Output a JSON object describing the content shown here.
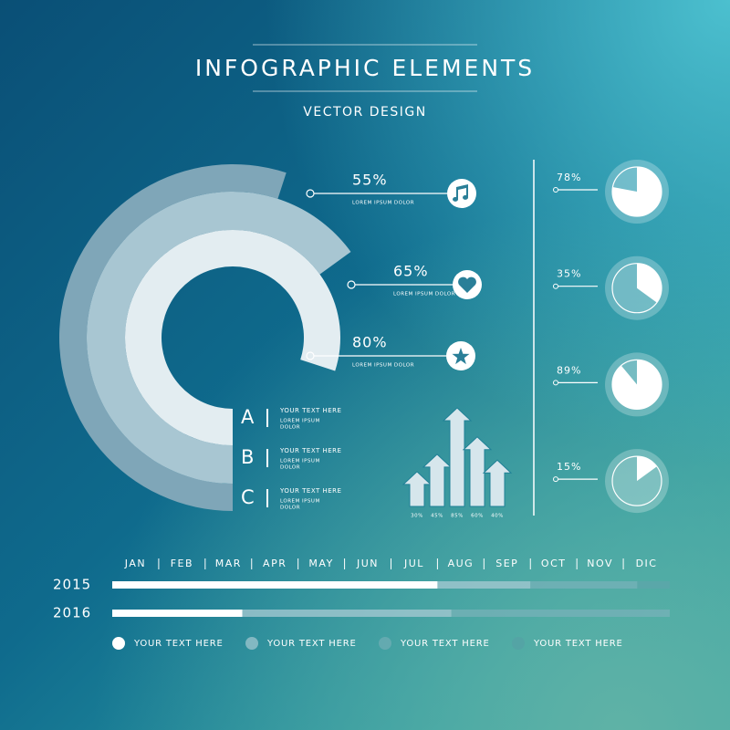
{
  "header": {
    "title": "INFOGRAPHIC ELEMENTS",
    "subtitle": "VECTOR DESIGN"
  },
  "rings": [
    {
      "value": 55,
      "label": "55%",
      "caption": "LOREM IPSUM DOLOR",
      "color": "#7fa6b8"
    },
    {
      "value": 65,
      "label": "65%",
      "caption": "LOREM IPSUM DOLOR",
      "color": "#a8c6d2"
    },
    {
      "value": 80,
      "label": "80%",
      "caption": "LOREM IPSUM DOLOR",
      "color": "#e3edf1"
    }
  ],
  "list": [
    {
      "letter": "A",
      "title": "YOUR TEXT HERE",
      "lines": [
        "LOREM IPSUM",
        "DOLOR"
      ]
    },
    {
      "letter": "B",
      "title": "YOUR TEXT HERE",
      "lines": [
        "LOREM IPSUM",
        "DOLOR"
      ]
    },
    {
      "letter": "C",
      "title": "YOUR TEXT HERE",
      "lines": [
        "LOREM IPSUM",
        "DOLOR"
      ]
    }
  ],
  "arrows": {
    "values": [
      30,
      45,
      85,
      60,
      40
    ],
    "labels": [
      "30%",
      "45%",
      "85%",
      "60%",
      "40%"
    ],
    "color": "#d6e6ec"
  },
  "pies": [
    {
      "value": 78,
      "label": "78%"
    },
    {
      "value": 35,
      "label": "35%"
    },
    {
      "value": 89,
      "label": "89%"
    },
    {
      "value": 15,
      "label": "15%"
    }
  ],
  "timeline": {
    "months": [
      "JAN",
      "FEB",
      "MAR",
      "APR",
      "MAY",
      "JUN",
      "JUL",
      "AUG",
      "SEP",
      "OCT",
      "NOV",
      "DIC"
    ],
    "rows": [
      {
        "year": "2015",
        "segments": [
          7,
          2,
          2.3,
          0.7
        ]
      },
      {
        "year": "2016",
        "segments": [
          2.8,
          4.5,
          4.7
        ]
      }
    ],
    "legend": [
      {
        "label": "YOUR TEXT HERE",
        "color": "#ffffff"
      },
      {
        "label": "YOUR TEXT HERE",
        "color": "#9fc6cf"
      },
      {
        "label": "YOUR TEXT HERE",
        "color": "#6fadb4"
      },
      {
        "label": "YOUR TEXT HERE",
        "color": "#56a2a6"
      }
    ]
  }
}
